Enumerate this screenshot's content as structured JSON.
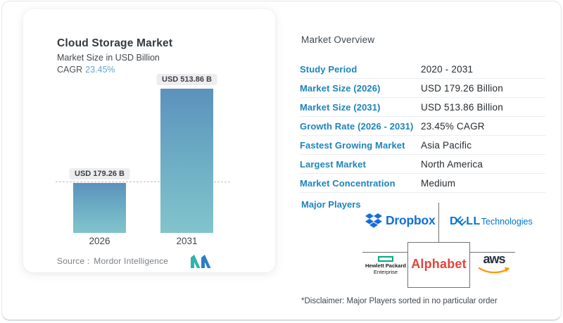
{
  "chart_card": {
    "title": "Cloud Storage Market",
    "subtitle": "Market Size in USD Billion",
    "cagr_label": "CAGR",
    "cagr_value": "23.45%",
    "source_label": "Source :",
    "source_value": "Mordor Intelligence"
  },
  "chart_data": {
    "type": "bar",
    "title": "Cloud Storage Market",
    "subtitle": "Market Size in USD Billion",
    "categories": [
      "2026",
      "2031"
    ],
    "values": [
      179.26,
      513.86
    ],
    "bar_labels": [
      "USD 179.26 B",
      "USD 513.86 B"
    ],
    "unit": "USD Billion",
    "cagr_percent": 23.45,
    "ylim": [
      0,
      560
    ],
    "grid": false,
    "legend": false,
    "annotations": {
      "dashed_reference_line_at": 179.26
    }
  },
  "overview": {
    "title": "Market Overview",
    "rows": [
      {
        "label": "Study Period",
        "value": "2020 - 2031"
      },
      {
        "label": "Market Size (2026)",
        "value": "USD 179.26 Billion"
      },
      {
        "label": "Market Size (2031)",
        "value": "USD 513.86 Billion"
      },
      {
        "label": "Growth Rate (2026 - 2031)",
        "value": "23.45% CAGR"
      },
      {
        "label": "Fastest Growing Market",
        "value": "Asia Pacific"
      },
      {
        "label": "Largest Market",
        "value": "North America"
      },
      {
        "label": "Market Concentration",
        "value": "Medium"
      }
    ],
    "major_players": {
      "label": "Major Players",
      "players": [
        {
          "name": "Dropbox",
          "label": "Dropbox"
        },
        {
          "name": "Dell Technologies",
          "d": "D",
          "e": "E",
          "ll": "LL",
          "suffix": "Technologies"
        },
        {
          "name": "Hewlett Packard Enterprise",
          "line1": "Hewlett Packard",
          "line2": "Enterprise"
        },
        {
          "name": "Alphabet",
          "label": "Alphabet"
        },
        {
          "name": "aws",
          "label": "aws"
        }
      ]
    },
    "disclaimer": "*Disclaimer: Major Players sorted in no particular order"
  },
  "colors": {
    "accent_label_blue": "#1d84ba",
    "cagr_value_blue": "#66a7c9",
    "bar_gradient_top": "#5b92bc",
    "bar_gradient_bottom": "#82c4cc",
    "pill_background": "#ededee",
    "mordor_teal": "#2fb3ac",
    "mordor_blue": "#2e7fc1",
    "dropbox_blue": "#0f6fdc",
    "dell_blue": "#0076ce",
    "hpe_green": "#01a982",
    "alphabet_red": "#e4433b",
    "aws_dark": "#232f3e",
    "aws_orange": "#ff9900"
  }
}
